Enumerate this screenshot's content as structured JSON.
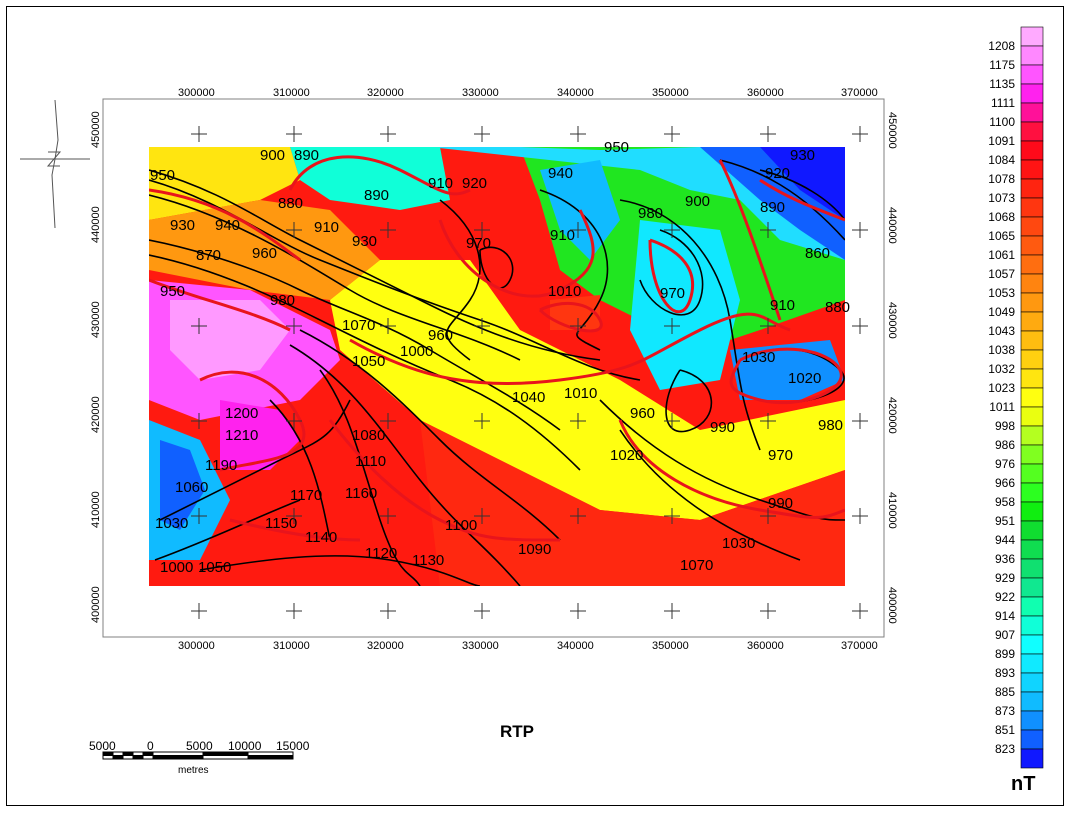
{
  "map": {
    "title": "RTP",
    "unit": "nT",
    "x_ticks_top": [
      "300000",
      "310000",
      "320000",
      "330000",
      "340000",
      "350000",
      "360000",
      "370000"
    ],
    "x_ticks_bottom": [
      "300000",
      "310000",
      "320000",
      "330000",
      "340000",
      "350000",
      "360000",
      "370000"
    ],
    "y_ticks_left": [
      "450000",
      "440000",
      "430000",
      "420000",
      "410000",
      "400000"
    ],
    "y_ticks_right": [
      "450000",
      "440000",
      "430000",
      "420000",
      "410000",
      "400000"
    ],
    "contour_labels": [
      "900",
      "890",
      "910",
      "920",
      "940",
      "950",
      "930",
      "880",
      "870",
      "960",
      "970",
      "980",
      "890",
      "910",
      "930",
      "950",
      "910",
      "900",
      "920",
      "860",
      "880",
      "890",
      "910",
      "930",
      "940",
      "950",
      "960",
      "970",
      "1010",
      "980",
      "1000",
      "1030",
      "1050",
      "1070",
      "1080",
      "1090",
      "1100",
      "1110",
      "1120",
      "1130",
      "1140",
      "1150",
      "1160",
      "1170",
      "1200",
      "1210",
      "1190",
      "1060",
      "1040",
      "1020",
      "990",
      "960",
      "1030",
      "1020",
      "1030",
      "980",
      "970",
      "990",
      "1070",
      "1010",
      "1000",
      "1050"
    ],
    "colors": {
      "red_contour": "#e8141c",
      "black_contour": "#000000"
    }
  },
  "legend": {
    "values": [
      "1208",
      "1175",
      "1135",
      "1111",
      "1100",
      "1091",
      "1084",
      "1078",
      "1073",
      "1068",
      "1065",
      "1061",
      "1057",
      "1053",
      "1049",
      "1043",
      "1038",
      "1032",
      "1023",
      "1011",
      "998",
      "986",
      "976",
      "966",
      "958",
      "951",
      "944",
      "936",
      "929",
      "922",
      "914",
      "907",
      "899",
      "893",
      "885",
      "873",
      "851",
      "823"
    ],
    "colors": [
      "#ff88ff",
      "#ff55ff",
      "#ff22ee",
      "#ff1199",
      "#ff1040",
      "#ff0a1a",
      "#ff1414",
      "#ff2410",
      "#ff3610",
      "#ff4810",
      "#ff5a10",
      "#ff6e10",
      "#ff8410",
      "#ff9810",
      "#ffaa10",
      "#ffbd10",
      "#ffd010",
      "#ffe510",
      "#ffff10",
      "#eaff10",
      "#b4ff20",
      "#80ff20",
      "#54ff20",
      "#2cff20",
      "#10ee10",
      "#10dd30",
      "#10dd50",
      "#10e070",
      "#10e890",
      "#10ffb0",
      "#10ffd8",
      "#10ffff",
      "#10eaff",
      "#10d4ff",
      "#10bbff",
      "#1090ff",
      "#1060ff",
      "#1018ff"
    ]
  },
  "scale_bar": {
    "labels": [
      "5000",
      "0",
      "5000",
      "10000",
      "15000"
    ],
    "unit": "metres"
  }
}
